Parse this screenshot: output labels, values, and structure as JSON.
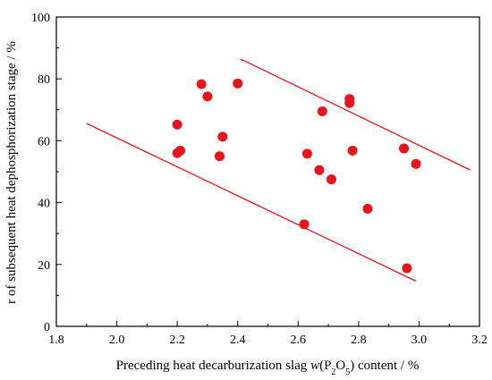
{
  "chart_data": {
    "type": "scatter",
    "xlabel_parts": {
      "prefix": "Preceding heat decarburization slag ",
      "italic": "w",
      "open": "(P",
      "sub1": "2",
      "mid": "O",
      "sub2": "5",
      "suffix": ") content / %"
    },
    "ylabel": "r of subsequent heat dephosphorization stage / %",
    "xlim": [
      1.8,
      3.2
    ],
    "ylim": [
      0,
      100
    ],
    "xticks": [
      "1.8",
      "2.0",
      "2.2",
      "2.4",
      "2.6",
      "2.8",
      "3.0",
      "3.2"
    ],
    "yticks": [
      "0",
      "20",
      "40",
      "60",
      "80",
      "100"
    ],
    "grid": false,
    "legend": "none",
    "marker_color": "#e8141c",
    "line_color": "#e8141c",
    "points": [
      {
        "x": 2.2,
        "y": 65.2
      },
      {
        "x": 2.2,
        "y": 56.0
      },
      {
        "x": 2.21,
        "y": 56.8
      },
      {
        "x": 2.28,
        "y": 78.3
      },
      {
        "x": 2.3,
        "y": 74.3
      },
      {
        "x": 2.34,
        "y": 55.0
      },
      {
        "x": 2.35,
        "y": 61.3
      },
      {
        "x": 2.4,
        "y": 78.5
      },
      {
        "x": 2.62,
        "y": 33.0
      },
      {
        "x": 2.63,
        "y": 55.8
      },
      {
        "x": 2.67,
        "y": 50.5
      },
      {
        "x": 2.68,
        "y": 69.5
      },
      {
        "x": 2.71,
        "y": 47.5
      },
      {
        "x": 2.77,
        "y": 73.5
      },
      {
        "x": 2.77,
        "y": 72.2
      },
      {
        "x": 2.78,
        "y": 56.8
      },
      {
        "x": 2.83,
        "y": 38.0
      },
      {
        "x": 2.95,
        "y": 57.5
      },
      {
        "x": 2.96,
        "y": 18.8
      },
      {
        "x": 2.99,
        "y": 52.5
      }
    ],
    "bound_lines": [
      {
        "x": [
          1.9,
          2.99
        ],
        "y": [
          65.6,
          14.6
        ]
      },
      {
        "x": [
          2.41,
          3.17
        ],
        "y": [
          86.4,
          50.5
        ]
      }
    ]
  }
}
